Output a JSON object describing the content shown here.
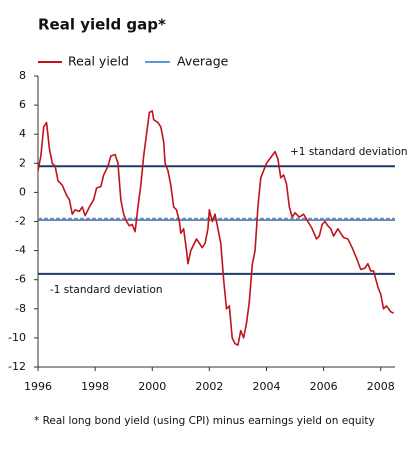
{
  "chart_data": {
    "type": "line",
    "title": "Real yield gap*",
    "footnote": "* Real long bond yield (using CPI) minus earnings yield on equity",
    "x": [
      1996.0,
      1996.1,
      1996.2,
      1996.3,
      1996.4,
      1996.5,
      1996.6,
      1996.7,
      1996.85,
      1997.0,
      1997.1,
      1997.2,
      1997.3,
      1997.45,
      1997.55,
      1997.65,
      1997.8,
      1997.95,
      1998.05,
      1998.2,
      1998.3,
      1998.45,
      1998.55,
      1998.7,
      1998.8,
      1998.9,
      1999.0,
      1999.1,
      1999.2,
      1999.3,
      1999.4,
      1999.5,
      1999.6,
      1999.7,
      1999.8,
      1999.9,
      2000.0,
      2000.05,
      2000.2,
      2000.3,
      2000.4,
      2000.45,
      2000.55,
      2000.65,
      2000.75,
      2000.85,
      2000.95,
      2001.0,
      2001.1,
      2001.2,
      2001.25,
      2001.35,
      2001.45,
      2001.55,
      2001.65,
      2001.75,
      2001.85,
      2001.95,
      2002.0,
      2002.1,
      2002.2,
      2002.3,
      2002.4,
      2002.5,
      2002.6,
      2002.7,
      2002.8,
      2002.9,
      2003.0,
      2003.1,
      2003.2,
      2003.3,
      2003.4,
      2003.5,
      2003.6,
      2003.7,
      2003.8,
      2003.9,
      2004.0,
      2004.15,
      2004.3,
      2004.4,
      2004.5,
      2004.6,
      2004.7,
      2004.8,
      2004.9,
      2005.0,
      2005.15,
      2005.3,
      2005.45,
      2005.6,
      2005.75,
      2005.85,
      2005.95,
      2006.05,
      2006.15,
      2006.25,
      2006.35,
      2006.5,
      2006.6,
      2006.7,
      2006.85,
      2007.0,
      2007.15,
      2007.3,
      2007.45,
      2007.55,
      2007.65,
      2007.75,
      2007.9,
      2008.0,
      2008.1,
      2008.2,
      2008.35,
      2008.45
    ],
    "series": [
      {
        "name": "Real yield",
        "color": "#c0141c",
        "values": [
          1.5,
          2.5,
          4.5,
          4.8,
          3.0,
          2.0,
          1.8,
          0.8,
          0.5,
          -0.2,
          -0.5,
          -1.5,
          -1.2,
          -1.3,
          -1.0,
          -1.6,
          -1.0,
          -0.5,
          0.3,
          0.4,
          1.2,
          1.8,
          2.5,
          2.6,
          2.0,
          -0.5,
          -1.5,
          -2.0,
          -2.3,
          -2.2,
          -2.7,
          -1.0,
          0.5,
          2.5,
          4.0,
          5.5,
          5.6,
          5.0,
          4.8,
          4.5,
          3.5,
          2.0,
          1.5,
          0.5,
          -1.0,
          -1.2,
          -2.0,
          -2.8,
          -2.5,
          -4.0,
          -4.9,
          -4.0,
          -3.6,
          -3.2,
          -3.5,
          -3.8,
          -3.5,
          -2.5,
          -1.2,
          -2.0,
          -1.5,
          -2.5,
          -3.5,
          -6.0,
          -8.0,
          -7.8,
          -10.0,
          -10.4,
          -10.5,
          -9.5,
          -10.0,
          -9.0,
          -7.5,
          -5.0,
          -4.0,
          -1.0,
          1.0,
          1.5,
          2.0,
          2.4,
          2.8,
          2.3,
          1.0,
          1.2,
          0.6,
          -1.0,
          -1.7,
          -1.4,
          -1.7,
          -1.5,
          -2.0,
          -2.5,
          -3.2,
          -3.0,
          -2.2,
          -2.0,
          -2.3,
          -2.5,
          -3.0,
          -2.5,
          -2.8,
          -3.1,
          -3.2,
          -3.8,
          -4.5,
          -5.3,
          -5.2,
          -4.9,
          -5.4,
          -5.4,
          -6.5,
          -7.0,
          -8.0,
          -7.8,
          -8.2,
          -8.3
        ]
      }
    ],
    "average": {
      "name": "Average",
      "color": "#5b9bd5",
      "value": -1.9
    },
    "bands": [
      {
        "label": "+1 standard deviation",
        "value": 1.8,
        "color": "#1f3a6e"
      },
      {
        "label": "-1 standard deviation",
        "value": -5.6,
        "color": "#1f3a6e"
      }
    ],
    "xlim": [
      1996,
      2008.5
    ],
    "xticks": [
      1996,
      1998,
      2000,
      2002,
      2004,
      2006,
      2008
    ],
    "ylim": [
      -12,
      8
    ],
    "yticks": [
      -12,
      -10,
      -8,
      -6,
      -4,
      -2,
      0,
      2,
      4,
      6,
      8
    ]
  }
}
